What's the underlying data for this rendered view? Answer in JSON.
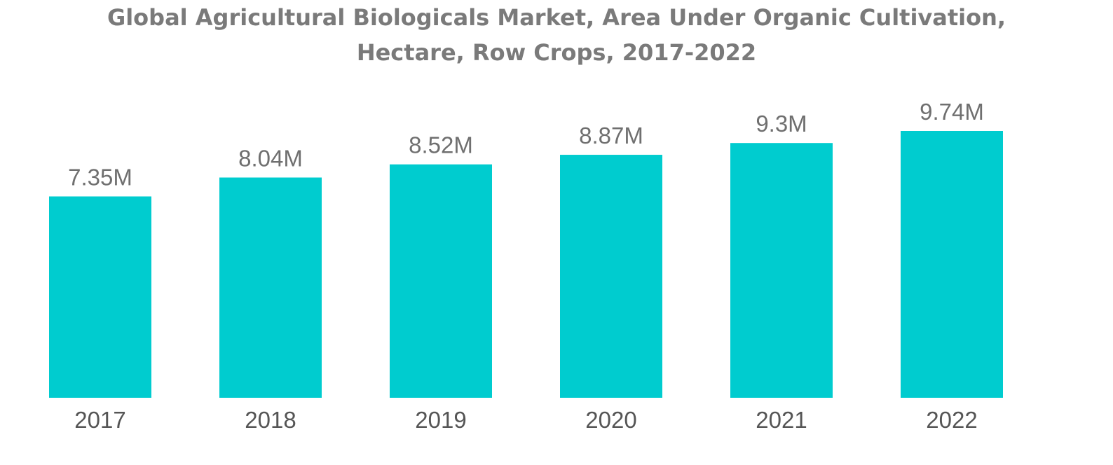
{
  "chart_data": {
    "type": "bar",
    "title_lines": [
      "Global Agricultural Biologicals Market, Area Under Organic Cultivation,",
      "Hectare, Row Crops, 2017-2022"
    ],
    "categories": [
      "2017",
      "2018",
      "2019",
      "2020",
      "2021",
      "2022"
    ],
    "values": [
      7.35,
      8.04,
      8.52,
      8.87,
      9.3,
      9.74
    ],
    "data_labels": [
      "7.35M",
      "8.04M",
      "8.52M",
      "8.87M",
      "9.3M",
      "9.74M"
    ],
    "unit": "M",
    "xlabel": "",
    "ylabel": "",
    "ylim": [
      0,
      9.74
    ],
    "grid": false,
    "legend": "none",
    "bar_color": "#00cccf"
  }
}
